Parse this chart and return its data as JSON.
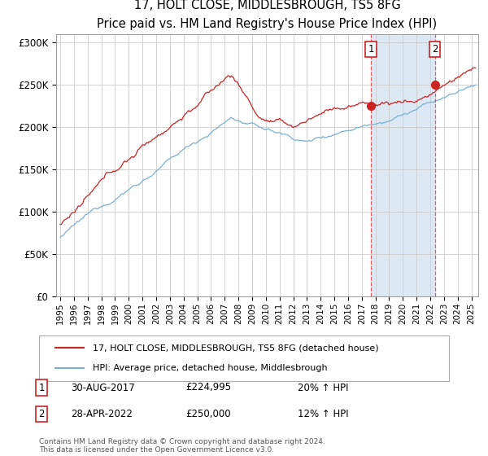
{
  "title": "17, HOLT CLOSE, MIDDLESBROUGH, TS5 8FG",
  "subtitle": "Price paid vs. HM Land Registry's House Price Index (HPI)",
  "ylabel_ticks": [
    "£0",
    "£50K",
    "£100K",
    "£150K",
    "£200K",
    "£250K",
    "£300K"
  ],
  "ytick_values": [
    0,
    50000,
    100000,
    150000,
    200000,
    250000,
    300000
  ],
  "ylim": [
    0,
    310000
  ],
  "xlim_start": 1994.7,
  "xlim_end": 2025.5,
  "hpi_color": "#7ab0d4",
  "price_color": "#cc2222",
  "marker1_year": 2017.67,
  "marker1_price": 224995,
  "marker1_label": "1",
  "marker1_date": "30-AUG-2017",
  "marker1_pct": "20% ↑ HPI",
  "marker2_year": 2022.33,
  "marker2_price": 250000,
  "marker2_label": "2",
  "marker2_date": "28-APR-2022",
  "marker2_pct": "12% ↑ HPI",
  "legend_house": "17, HOLT CLOSE, MIDDLESBROUGH, TS5 8FG (detached house)",
  "legend_hpi": "HPI: Average price, detached house, Middlesbrough",
  "footer": "Contains HM Land Registry data © Crown copyright and database right 2024.\nThis data is licensed under the Open Government Licence v3.0.",
  "background_color": "#ffffff",
  "grid_color": "#cccccc",
  "shade_color": "#dce9f5"
}
